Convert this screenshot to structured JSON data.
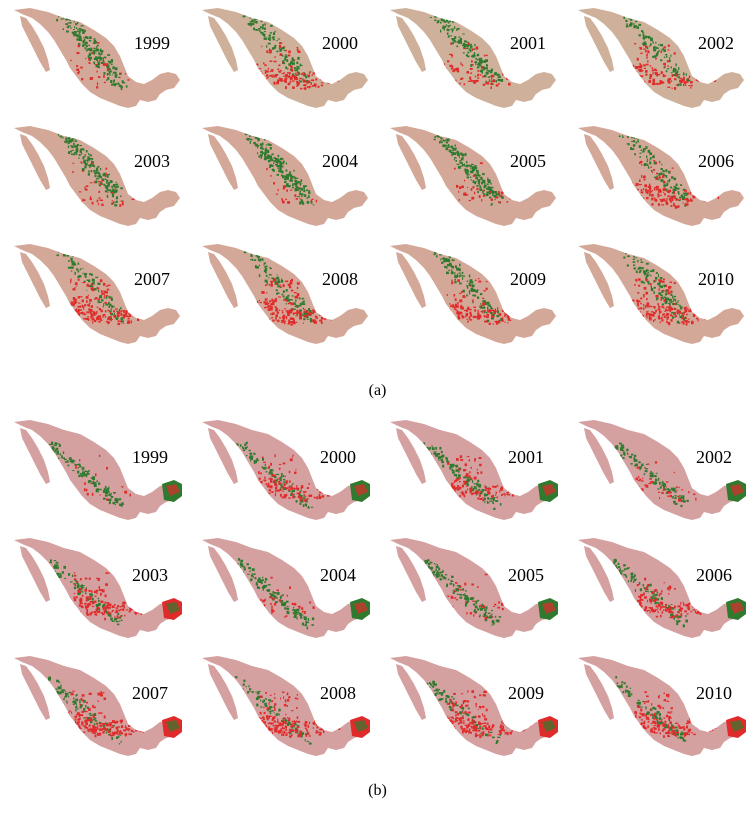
{
  "figure": {
    "panel_a": {
      "caption": "(a)",
      "years": [
        "1999",
        "2000",
        "2001",
        "2002",
        "2003",
        "2004",
        "2005",
        "2006",
        "2007",
        "2008",
        "2009",
        "2010"
      ],
      "colors": {
        "land": "#d4a898",
        "land_alt": "#cfb19b",
        "green": "#2f7a2f",
        "red": "#e02b2b"
      },
      "red_levels": [
        0.15,
        0.6,
        0.35,
        0.55,
        0.2,
        0.1,
        0.15,
        0.6,
        0.85,
        0.75,
        0.6,
        0.8
      ],
      "green_levels": [
        0.8,
        0.5,
        0.65,
        0.4,
        0.7,
        0.85,
        0.8,
        0.45,
        0.4,
        0.45,
        0.5,
        0.5
      ]
    },
    "panel_b": {
      "caption": "(b)",
      "years": [
        "1999",
        "2000",
        "2001",
        "2002",
        "2003",
        "2004",
        "2005",
        "2006",
        "2007",
        "2008",
        "2009",
        "2010"
      ],
      "colors": {
        "land": "#d4a0a0",
        "green": "#2f7a2f",
        "red": "#e02b2b"
      },
      "red_levels": [
        0.1,
        0.55,
        0.5,
        0.2,
        0.7,
        0.15,
        0.15,
        0.55,
        0.8,
        0.85,
        0.75,
        0.7
      ],
      "green_levels": [
        0.5,
        0.4,
        0.45,
        0.4,
        0.35,
        0.5,
        0.5,
        0.4,
        0.35,
        0.3,
        0.3,
        0.35
      ]
    }
  }
}
